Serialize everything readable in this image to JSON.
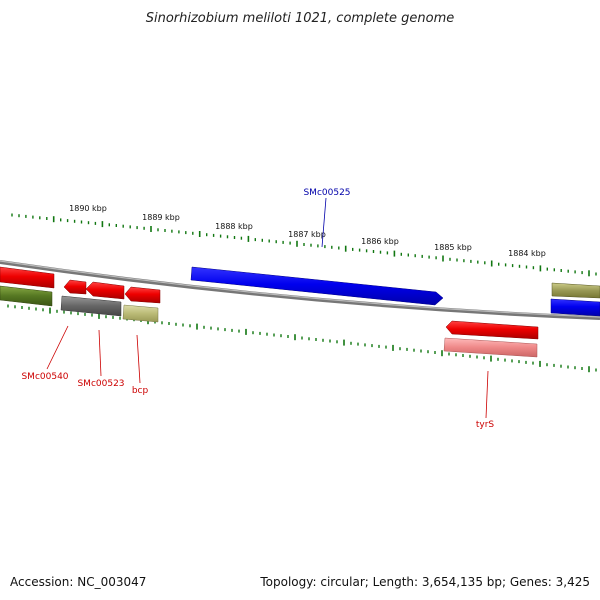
{
  "title": "Sinorhizobium meliloti 1021, complete genome",
  "ticks": [
    "1890 kbp",
    "1889 kbp",
    "1888 kbp",
    "1887 kbp",
    "1886 kbp",
    "1885 kbp",
    "1884 kbp"
  ],
  "labels": {
    "smc00525": "SMc00525",
    "smc00540": "SMc00540",
    "smc00523": "SMc00523",
    "bcp": "bcp",
    "tyrs": "tyrS"
  },
  "footer": {
    "accession": "Accession: NC_003047",
    "summary": "Topology: circular; Length: 3,654,135 bp; Genes: 3,425"
  },
  "colors": {
    "forward_cds": "#0000ee",
    "reverse_cds": "#ee0000",
    "reverse_gene_red": "#ee1111",
    "gene_green": "#557722",
    "gene_gray": "#666666",
    "gene_khaki": "#bbbb77",
    "gene_pink": "#ee8888",
    "tick_green": "#117711",
    "backbone": "#888888",
    "label_blue": "#0000aa",
    "label_red": "#cc0000"
  }
}
